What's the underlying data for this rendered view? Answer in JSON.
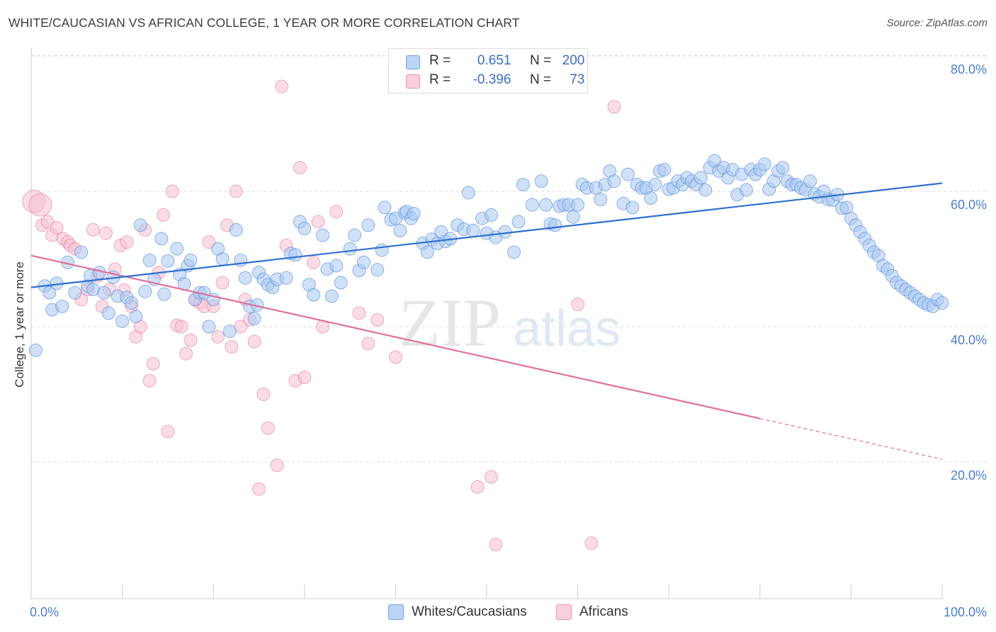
{
  "title": "WHITE/CAUCASIAN VS AFRICAN COLLEGE, 1 YEAR OR MORE CORRELATION CHART",
  "source": "Source: ZipAtlas.com",
  "watermark": {
    "zip": "ZIP",
    "atlas": "atlas"
  },
  "legend": {
    "r_label": "R =",
    "n_label": "N =",
    "rows": [
      {
        "name": "Whites/Caucasians",
        "r": "0.651",
        "n": "200",
        "color": "#6fa3e8"
      },
      {
        "name": "Africans",
        "r": "-0.396",
        "n": "73",
        "color": "#f08fb0"
      }
    ]
  },
  "chart_data": {
    "type": "scatter",
    "title": "WHITE/CAUCASIAN VS AFRICAN COLLEGE, 1 YEAR OR MORE CORRELATION CHART",
    "xlabel": "",
    "ylabel": "College, 1 year or more",
    "xlim": [
      0,
      100
    ],
    "ylim": [
      0,
      83
    ],
    "x_tick_labels": [
      "0.0%",
      "100.0%"
    ],
    "y_ticks": [
      20,
      40,
      60,
      80
    ],
    "y_tick_labels": [
      "20.0%",
      "40.0%",
      "60.0%",
      "80.0%"
    ],
    "grid": true,
    "legend_position": "top-center",
    "colors": {
      "whites": "#4a86d8",
      "whites_fill": "#a9c8f0",
      "africans": "#e0709a",
      "africans_fill": "#f6c0d2"
    },
    "series": [
      {
        "name": "Whites/Caucasians",
        "trend": {
          "x": [
            0,
            100
          ],
          "y": [
            45.8,
            61.2
          ],
          "solid_until": 100
        },
        "points": [
          [
            0.5,
            36.5
          ],
          [
            1.5,
            46
          ],
          [
            2,
            45
          ],
          [
            2.3,
            42.5
          ],
          [
            2.8,
            46.4
          ],
          [
            3.4,
            43
          ],
          [
            4,
            49.5
          ],
          [
            4.8,
            45
          ],
          [
            5.5,
            51
          ],
          [
            6.2,
            46
          ],
          [
            6.5,
            47.5
          ],
          [
            6.8,
            45.5
          ],
          [
            7.5,
            48
          ],
          [
            8,
            45
          ],
          [
            8.5,
            42
          ],
          [
            9,
            47.3
          ],
          [
            9.5,
            44.5
          ],
          [
            10,
            40.8
          ],
          [
            10.5,
            44.3
          ],
          [
            11,
            43.5
          ],
          [
            11.5,
            41.5
          ],
          [
            12,
            55
          ],
          [
            12.5,
            45.2
          ],
          [
            13,
            49.8
          ],
          [
            13.5,
            47
          ],
          [
            14.3,
            53
          ],
          [
            14.6,
            44.8
          ],
          [
            15,
            49.7
          ],
          [
            16,
            51.5
          ],
          [
            16.3,
            47.7
          ],
          [
            16.8,
            46.3
          ],
          [
            17.2,
            49
          ],
          [
            17.5,
            49.8
          ],
          [
            18,
            44
          ],
          [
            18.5,
            45
          ],
          [
            19,
            45
          ],
          [
            19.5,
            40
          ],
          [
            20,
            44
          ],
          [
            20.5,
            51.5
          ],
          [
            21,
            50
          ],
          [
            21.8,
            39.3
          ],
          [
            22.5,
            54.3
          ],
          [
            23,
            49.8
          ],
          [
            23.5,
            47.2
          ],
          [
            24,
            43
          ],
          [
            24.5,
            41.2
          ],
          [
            24.8,
            43.2
          ],
          [
            25,
            48
          ],
          [
            25.5,
            47
          ],
          [
            26,
            46.2
          ],
          [
            26.5,
            45.8
          ],
          [
            27,
            47
          ],
          [
            28,
            47.2
          ],
          [
            28.5,
            50.8
          ],
          [
            29,
            50.6
          ],
          [
            29.5,
            55.5
          ],
          [
            30,
            54.5
          ],
          [
            30.5,
            46.2
          ],
          [
            31,
            44.7
          ],
          [
            32,
            53.5
          ],
          [
            32.5,
            48.5
          ],
          [
            33,
            44.5
          ],
          [
            33.5,
            49
          ],
          [
            34,
            46.5
          ],
          [
            35,
            51.5
          ],
          [
            35.5,
            53.5
          ],
          [
            36,
            48.3
          ],
          [
            36.5,
            49.5
          ],
          [
            37,
            55
          ],
          [
            38,
            48.4
          ],
          [
            38.5,
            51.3
          ],
          [
            38.8,
            57.6
          ],
          [
            39.5,
            55.8
          ],
          [
            40,
            56
          ],
          [
            40.5,
            54.2
          ],
          [
            41,
            56.8
          ],
          [
            41.2,
            57
          ],
          [
            41.7,
            56
          ],
          [
            42,
            56.7
          ],
          [
            43,
            52.3
          ],
          [
            43.5,
            51
          ],
          [
            44,
            52.9
          ],
          [
            44.6,
            52.3
          ],
          [
            45,
            54
          ],
          [
            45.5,
            52.6
          ],
          [
            46,
            53
          ],
          [
            46.8,
            55
          ],
          [
            47.5,
            54.4
          ],
          [
            48,
            59.8
          ],
          [
            48.5,
            54.2
          ],
          [
            49.5,
            56
          ],
          [
            50,
            53.8
          ],
          [
            50.5,
            56.5
          ],
          [
            51,
            53.2
          ],
          [
            52,
            54
          ],
          [
            53,
            51
          ],
          [
            53.5,
            55.5
          ],
          [
            54,
            61
          ],
          [
            55,
            58
          ],
          [
            56,
            61.5
          ],
          [
            56.5,
            58
          ],
          [
            57,
            55.2
          ],
          [
            57.5,
            55
          ],
          [
            58,
            57.8
          ],
          [
            58.5,
            58
          ],
          [
            59,
            58
          ],
          [
            59.5,
            56.2
          ],
          [
            60,
            58
          ],
          [
            60.5,
            61
          ],
          [
            61,
            60.5
          ],
          [
            62,
            60.5
          ],
          [
            62.5,
            58.8
          ],
          [
            63,
            61
          ],
          [
            63.5,
            63
          ],
          [
            64,
            61.5
          ],
          [
            65,
            58.2
          ],
          [
            65.5,
            62.5
          ],
          [
            66,
            57.6
          ],
          [
            66.5,
            61
          ],
          [
            67,
            60.5
          ],
          [
            67.5,
            60.5
          ],
          [
            68,
            59
          ],
          [
            68.5,
            61
          ],
          [
            69,
            63
          ],
          [
            69.5,
            63.2
          ],
          [
            70,
            60.3
          ],
          [
            70.5,
            60.5
          ],
          [
            71,
            61.5
          ],
          [
            71.5,
            61
          ],
          [
            72,
            62
          ],
          [
            72.5,
            61.5
          ],
          [
            73,
            61
          ],
          [
            73.5,
            62
          ],
          [
            74,
            60.2
          ],
          [
            74.5,
            63.5
          ],
          [
            75,
            64.5
          ],
          [
            75.5,
            63
          ],
          [
            76,
            63.5
          ],
          [
            76.5,
            62
          ],
          [
            77,
            63.2
          ],
          [
            77.5,
            59.5
          ],
          [
            78,
            62.5
          ],
          [
            78.5,
            60.2
          ],
          [
            79,
            63.2
          ],
          [
            79.5,
            62.5
          ],
          [
            80,
            63.2
          ],
          [
            80.5,
            64
          ],
          [
            81,
            60.3
          ],
          [
            81.5,
            61.5
          ],
          [
            82,
            63
          ],
          [
            82.5,
            63.5
          ],
          [
            83,
            61.5
          ],
          [
            83.5,
            61
          ],
          [
            84,
            61
          ],
          [
            84.5,
            60.5
          ],
          [
            85,
            60.2
          ],
          [
            85.5,
            61.5
          ],
          [
            86,
            59.6
          ],
          [
            86.5,
            59.2
          ],
          [
            87,
            60
          ],
          [
            87.5,
            58.8
          ],
          [
            88,
            58.7
          ],
          [
            88.5,
            59.5
          ],
          [
            89,
            57.5
          ],
          [
            89.5,
            57.6
          ],
          [
            90,
            56
          ],
          [
            90.5,
            55
          ],
          [
            91,
            54
          ],
          [
            91.5,
            53
          ],
          [
            92,
            52
          ],
          [
            92.5,
            51
          ],
          [
            93,
            50.5
          ],
          [
            93.5,
            49
          ],
          [
            94,
            48.5
          ],
          [
            94.5,
            47.5
          ],
          [
            95,
            46.5
          ],
          [
            95.5,
            46
          ],
          [
            96,
            45.5
          ],
          [
            96.5,
            45
          ],
          [
            97,
            44.5
          ],
          [
            97.5,
            44
          ],
          [
            98,
            43.5
          ],
          [
            98.5,
            43.2
          ],
          [
            99,
            43
          ],
          [
            99.5,
            44
          ],
          [
            100,
            43.5
          ]
        ]
      },
      {
        "name": "Africans",
        "trend": {
          "x": [
            0,
            100
          ],
          "y": [
            50.5,
            20.4
          ],
          "solid_until": 80
        },
        "points": [
          [
            0.3,
            58.5
          ],
          [
            1,
            58
          ],
          [
            1.2,
            55
          ],
          [
            1.8,
            55.5
          ],
          [
            2.3,
            53.5
          ],
          [
            2.8,
            54.6
          ],
          [
            3.5,
            53
          ],
          [
            4,
            52.5
          ],
          [
            4.3,
            52
          ],
          [
            4.8,
            51.5
          ],
          [
            5.5,
            44
          ],
          [
            6.2,
            45.5
          ],
          [
            6.8,
            54.3
          ],
          [
            7.3,
            47.5
          ],
          [
            7.8,
            43
          ],
          [
            8.2,
            53.8
          ],
          [
            8.6,
            45.5
          ],
          [
            9.2,
            48.5
          ],
          [
            9.8,
            52
          ],
          [
            10.2,
            45.4
          ],
          [
            10.5,
            52.5
          ],
          [
            11,
            43
          ],
          [
            11.5,
            38.5
          ],
          [
            12,
            40
          ],
          [
            12.5,
            54.3
          ],
          [
            13,
            32
          ],
          [
            13.4,
            34.5
          ],
          [
            14,
            48
          ],
          [
            14.5,
            56.5
          ],
          [
            15,
            24.5
          ],
          [
            15.5,
            60
          ],
          [
            16,
            40.2
          ],
          [
            16.5,
            40
          ],
          [
            17,
            36
          ],
          [
            17.5,
            38
          ],
          [
            18,
            44
          ],
          [
            18.5,
            43.5
          ],
          [
            19,
            43
          ],
          [
            19.5,
            52.5
          ],
          [
            20,
            43
          ],
          [
            20.5,
            38.5
          ],
          [
            21,
            46.5
          ],
          [
            21.5,
            55
          ],
          [
            22,
            37
          ],
          [
            22.5,
            60
          ],
          [
            23,
            40
          ],
          [
            23.5,
            44
          ],
          [
            24,
            41
          ],
          [
            24.5,
            37.8
          ],
          [
            25,
            16
          ],
          [
            25.5,
            30
          ],
          [
            26,
            25
          ],
          [
            27,
            19.5
          ],
          [
            27.5,
            75.5
          ],
          [
            28,
            52
          ],
          [
            29,
            32
          ],
          [
            29.5,
            63.5
          ],
          [
            30,
            32.5
          ],
          [
            31,
            49.5
          ],
          [
            31.5,
            55.5
          ],
          [
            32,
            40
          ],
          [
            33.5,
            57
          ],
          [
            36,
            42
          ],
          [
            37,
            37.5
          ],
          [
            38,
            41
          ],
          [
            40,
            35.5
          ],
          [
            49,
            16.3
          ],
          [
            50.5,
            17.8
          ],
          [
            51,
            7.8
          ],
          [
            60,
            43.3
          ],
          [
            64,
            72.5
          ],
          [
            61.5,
            8
          ]
        ]
      }
    ]
  }
}
